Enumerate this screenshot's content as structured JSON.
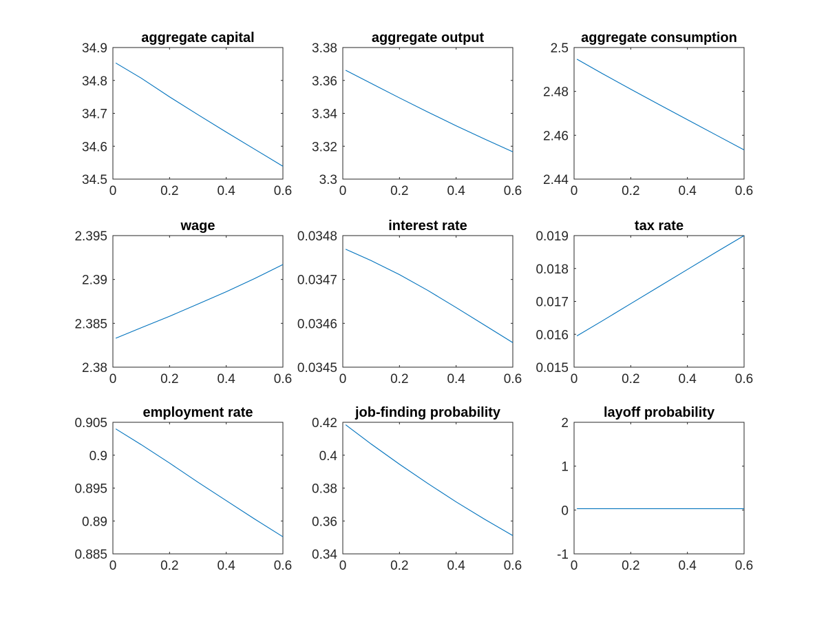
{
  "series_color": "#0072BD",
  "chart_data": [
    {
      "type": "line",
      "title": "aggregate capital",
      "xlim": [
        0,
        0.6
      ],
      "ylim": [
        34.5,
        34.9
      ],
      "xticks": [
        "0",
        "0.2",
        "0.4",
        "0.6"
      ],
      "yticks": [
        "34.5",
        "34.6",
        "34.7",
        "34.8",
        "34.9"
      ],
      "x": [
        0.01,
        0.1,
        0.2,
        0.3,
        0.4,
        0.5,
        0.6
      ],
      "y": [
        34.853,
        34.807,
        34.75,
        34.696,
        34.643,
        34.591,
        34.539
      ]
    },
    {
      "type": "line",
      "title": "aggregate output",
      "xlim": [
        0,
        0.6
      ],
      "ylim": [
        3.3,
        3.38
      ],
      "xticks": [
        "0",
        "0.2",
        "0.4",
        "0.6"
      ],
      "yticks": [
        "3.3",
        "3.32",
        "3.34",
        "3.36",
        "3.38"
      ],
      "x": [
        0.01,
        0.1,
        0.2,
        0.3,
        0.4,
        0.5,
        0.6
      ],
      "y": [
        3.3662,
        3.3582,
        3.3494,
        3.3408,
        3.3324,
        3.3244,
        3.3166
      ]
    },
    {
      "type": "line",
      "title": "aggregate consumption",
      "xlim": [
        0,
        0.6
      ],
      "ylim": [
        2.44,
        2.5
      ],
      "xticks": [
        "0",
        "0.2",
        "0.4",
        "0.6"
      ],
      "yticks": [
        "2.44",
        "2.46",
        "2.48",
        "2.5"
      ],
      "x": [
        0.01,
        0.1,
        0.2,
        0.3,
        0.4,
        0.5,
        0.6
      ],
      "y": [
        2.4947,
        2.4881,
        2.481,
        2.474,
        2.4671,
        2.4602,
        2.4533
      ]
    },
    {
      "type": "line",
      "title": "wage",
      "xlim": [
        0,
        0.6
      ],
      "ylim": [
        2.38,
        2.395
      ],
      "xticks": [
        "0",
        "0.2",
        "0.4",
        "0.6"
      ],
      "yticks": [
        "2.38",
        "2.385",
        "2.39",
        "2.395"
      ],
      "x": [
        0.01,
        0.1,
        0.2,
        0.3,
        0.4,
        0.5,
        0.6
      ],
      "y": [
        2.3833,
        2.3845,
        2.3858,
        2.3872,
        2.3886,
        2.3901,
        2.3917
      ]
    },
    {
      "type": "line",
      "title": "interest rate",
      "xlim": [
        0,
        0.6
      ],
      "ylim": [
        0.0345,
        0.0348
      ],
      "xticks": [
        "0",
        "0.2",
        "0.4",
        "0.6"
      ],
      "yticks": [
        "0.0345",
        "0.0346",
        "0.0347",
        "0.0348"
      ],
      "x": [
        0.01,
        0.1,
        0.2,
        0.3,
        0.4,
        0.5,
        0.6
      ],
      "y": [
        0.034769,
        0.034743,
        0.034711,
        0.034675,
        0.034636,
        0.034596,
        0.034556
      ]
    },
    {
      "type": "line",
      "title": "tax rate",
      "xlim": [
        0,
        0.6
      ],
      "ylim": [
        0.015,
        0.019
      ],
      "xticks": [
        "0",
        "0.2",
        "0.4",
        "0.6"
      ],
      "yticks": [
        "0.015",
        "0.016",
        "0.017",
        "0.018",
        "0.019"
      ],
      "x": [
        0.01,
        0.1,
        0.2,
        0.3,
        0.4,
        0.5,
        0.6
      ],
      "y": [
        0.01595,
        0.01641,
        0.01693,
        0.01745,
        0.01797,
        0.01849,
        0.019
      ]
    },
    {
      "type": "line",
      "title": "employment rate",
      "xlim": [
        0,
        0.6
      ],
      "ylim": [
        0.885,
        0.905
      ],
      "xticks": [
        "0",
        "0.2",
        "0.4",
        "0.6"
      ],
      "yticks": [
        "0.885",
        "0.89",
        "0.895",
        "0.9",
        "0.905"
      ],
      "x": [
        0.01,
        0.1,
        0.2,
        0.3,
        0.4,
        0.5,
        0.6
      ],
      "y": [
        0.904,
        0.9016,
        0.8988,
        0.8959,
        0.8931,
        0.8903,
        0.8876
      ]
    },
    {
      "type": "line",
      "title": "job-finding probability",
      "xlim": [
        0,
        0.6
      ],
      "ylim": [
        0.34,
        0.42
      ],
      "xticks": [
        "0",
        "0.2",
        "0.4",
        "0.6"
      ],
      "yticks": [
        "0.34",
        "0.36",
        "0.38",
        "0.4",
        "0.42"
      ],
      "x": [
        0.01,
        0.1,
        0.2,
        0.3,
        0.4,
        0.5,
        0.6
      ],
      "y": [
        0.4185,
        0.4068,
        0.3945,
        0.3828,
        0.3716,
        0.3611,
        0.3511
      ]
    },
    {
      "type": "line",
      "title": "layoff probability",
      "xlim": [
        0,
        0.6
      ],
      "ylim": [
        -1,
        2
      ],
      "xticks": [
        "0",
        "0.2",
        "0.4",
        "0.6"
      ],
      "yticks": [
        "-1",
        "0",
        "1",
        "2"
      ],
      "x": [
        0.01,
        0.6
      ],
      "y": [
        0.03,
        0.03
      ]
    }
  ]
}
